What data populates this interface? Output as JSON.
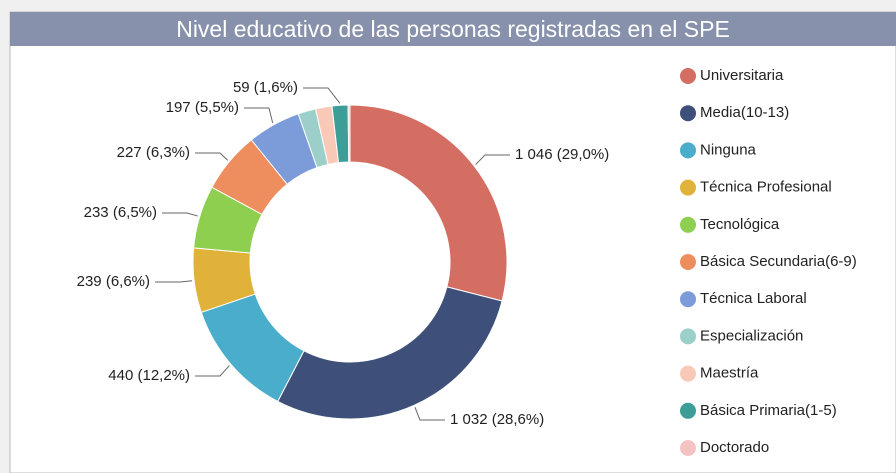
{
  "chart_data": {
    "type": "donut",
    "title": "Nivel educativo de las personas registradas en el SPE",
    "categories": [
      "Universitaria",
      "Media(10-13)",
      "Ninguna",
      "Técnica Profesional",
      "Tecnológica",
      "Básica Secundaria(6-9)",
      "Técnica Laboral",
      "Especialización",
      "Maestría",
      "Básica Primaria(1-5)",
      "Doctorado"
    ],
    "values": [
      1046,
      1032,
      440,
      239,
      233,
      227,
      197,
      66,
      61,
      59,
      7
    ],
    "value_labels": [
      "1 046 (29,0%)",
      "1 032 (28,6%)",
      "440 (12,2%)",
      "239 (6,6%)",
      "233 (6,5%)",
      "227 (6,3%)",
      "197 (5,5%)",
      null,
      null,
      "59 (1,6%)",
      null
    ],
    "colors": [
      "#d46e62",
      "#3e5079",
      "#4aadcc",
      "#e0b23a",
      "#8ecf4f",
      "#ee8e5f",
      "#7b9bd9",
      "#9ccfc9",
      "#f8c9b6",
      "#3d9e98",
      "#f4c4c4"
    ],
    "legend": "right"
  }
}
